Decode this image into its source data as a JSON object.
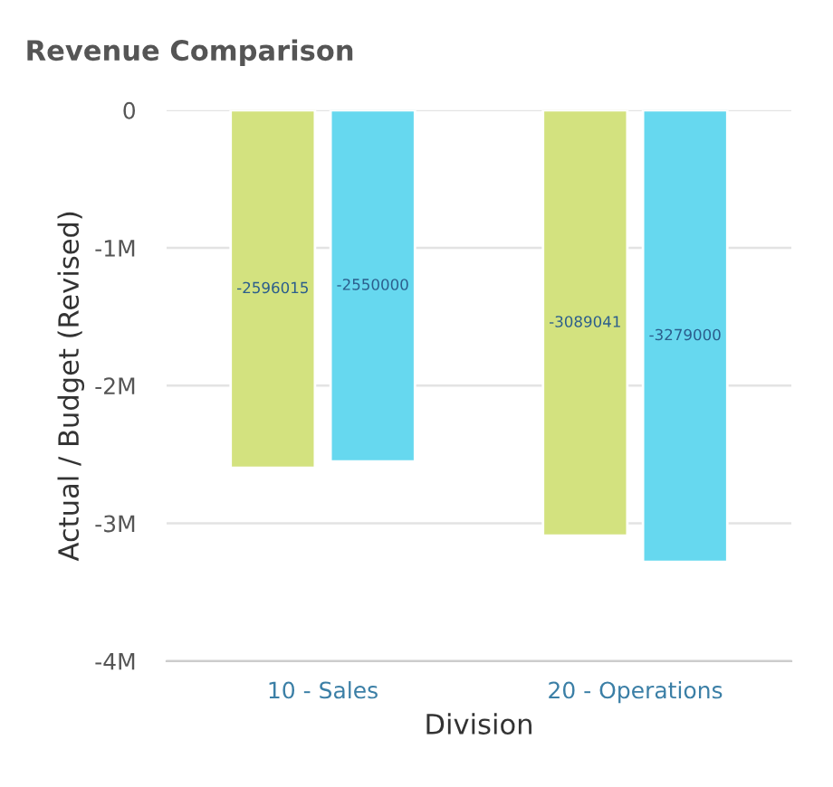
{
  "chart_data": {
    "type": "bar",
    "title": "Revenue Comparison",
    "xlabel": "Division",
    "ylabel": "Actual / Budget (Revised)",
    "categories": [
      "10 - Sales",
      "20 - Operations"
    ],
    "series": [
      {
        "color": "#d3e27f",
        "values": [
          -2596015,
          -3089041
        ]
      },
      {
        "color": "#66d8ef",
        "values": [
          -2550000,
          -3279000
        ]
      }
    ],
    "ylim": [
      -4000000,
      0
    ],
    "yticks": [
      {
        "value": 0,
        "label": "0"
      },
      {
        "value": -1000000,
        "label": "-1M"
      },
      {
        "value": -2000000,
        "label": "-2M"
      },
      {
        "value": -3000000,
        "label": "-3M"
      },
      {
        "value": -4000000,
        "label": "-4M"
      }
    ],
    "grid": "y",
    "data_labels": true
  }
}
